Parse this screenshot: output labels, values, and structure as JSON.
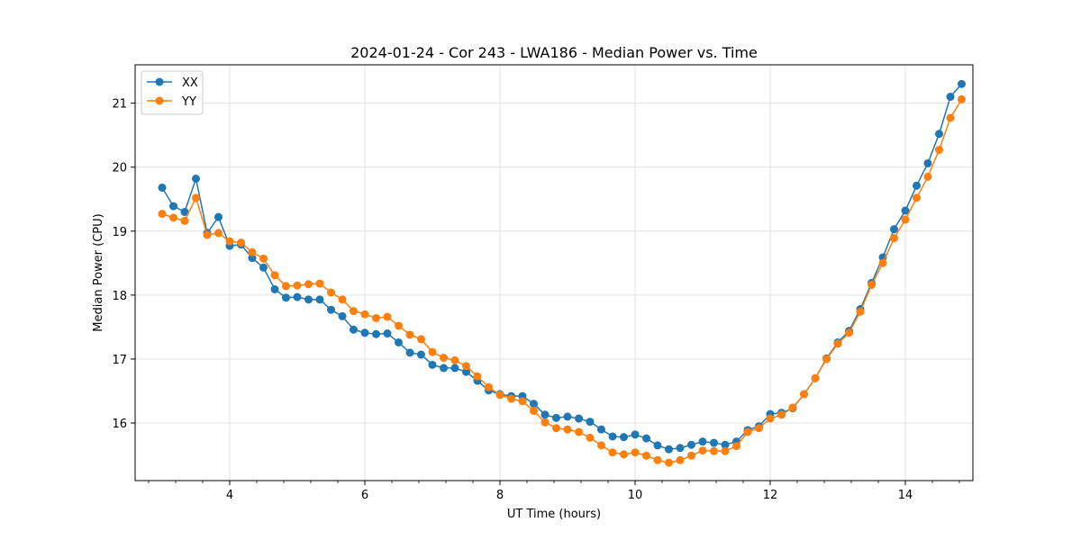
{
  "chart_data": {
    "type": "line",
    "title": "2024-01-24 - Cor 243 - LWA186 - Median Power vs. Time",
    "xlabel": "UT Time (hours)",
    "ylabel": "Median Power (CPU)",
    "xlim": [
      2.6,
      15.0
    ],
    "ylim": [
      15.1,
      21.6
    ],
    "xticks": [
      4,
      6,
      8,
      10,
      12,
      14
    ],
    "yticks": [
      16,
      17,
      18,
      19,
      20,
      21
    ],
    "grid": true,
    "legend_position": "top-left",
    "colors": {
      "XX": "#1f77b4",
      "YY": "#ff7f0e"
    },
    "x": [
      3.0,
      3.167,
      3.333,
      3.5,
      3.667,
      3.833,
      4.0,
      4.167,
      4.333,
      4.5,
      4.667,
      4.833,
      5.0,
      5.167,
      5.333,
      5.5,
      5.667,
      5.833,
      6.0,
      6.167,
      6.333,
      6.5,
      6.667,
      6.833,
      7.0,
      7.167,
      7.333,
      7.5,
      7.667,
      7.833,
      8.0,
      8.167,
      8.333,
      8.5,
      8.667,
      8.833,
      9.0,
      9.167,
      9.333,
      9.5,
      9.667,
      9.833,
      10.0,
      10.167,
      10.333,
      10.5,
      10.667,
      10.833,
      11.0,
      11.167,
      11.333,
      11.5,
      11.667,
      11.833,
      12.0,
      12.167,
      12.333,
      12.5,
      12.667,
      12.833,
      13.0,
      13.167,
      13.333,
      13.5,
      13.667,
      13.833,
      14.0,
      14.167,
      14.333,
      14.5,
      14.667,
      14.833
    ],
    "series": [
      {
        "name": "XX",
        "values": [
          19.68,
          19.39,
          19.3,
          19.82,
          18.97,
          19.22,
          18.77,
          18.79,
          18.58,
          18.43,
          18.09,
          17.96,
          17.97,
          17.93,
          17.93,
          17.77,
          17.67,
          17.46,
          17.41,
          17.39,
          17.4,
          17.26,
          17.1,
          17.07,
          16.91,
          16.86,
          16.86,
          16.8,
          16.66,
          16.51,
          16.45,
          16.42,
          16.42,
          16.3,
          16.13,
          16.08,
          16.1,
          16.07,
          16.02,
          15.9,
          15.79,
          15.78,
          15.82,
          15.76,
          15.65,
          15.59,
          15.61,
          15.66,
          15.71,
          15.69,
          15.66,
          15.71,
          15.89,
          15.95,
          16.14,
          16.16,
          16.23,
          16.45,
          16.7,
          17.01,
          17.26,
          17.44,
          17.78,
          18.19,
          18.59,
          19.03,
          19.32,
          19.71,
          20.06,
          20.52,
          21.1,
          21.3
        ]
      },
      {
        "name": "YY",
        "values": [
          19.27,
          19.21,
          19.16,
          19.52,
          18.94,
          18.97,
          18.84,
          18.82,
          18.67,
          18.57,
          18.31,
          18.14,
          18.15,
          18.17,
          18.18,
          18.04,
          17.93,
          17.75,
          17.7,
          17.64,
          17.66,
          17.52,
          17.38,
          17.31,
          17.11,
          17.02,
          16.98,
          16.89,
          16.73,
          16.56,
          16.44,
          16.38,
          16.34,
          16.19,
          16.01,
          15.92,
          15.9,
          15.86,
          15.77,
          15.65,
          15.54,
          15.51,
          15.54,
          15.49,
          15.42,
          15.38,
          15.42,
          15.49,
          15.57,
          15.56,
          15.56,
          15.64,
          15.86,
          15.92,
          16.07,
          16.13,
          16.24,
          16.45,
          16.7,
          17.0,
          17.24,
          17.41,
          17.74,
          18.16,
          18.5,
          18.89,
          19.18,
          19.52,
          19.85,
          20.27,
          20.77,
          21.06
        ]
      }
    ]
  }
}
